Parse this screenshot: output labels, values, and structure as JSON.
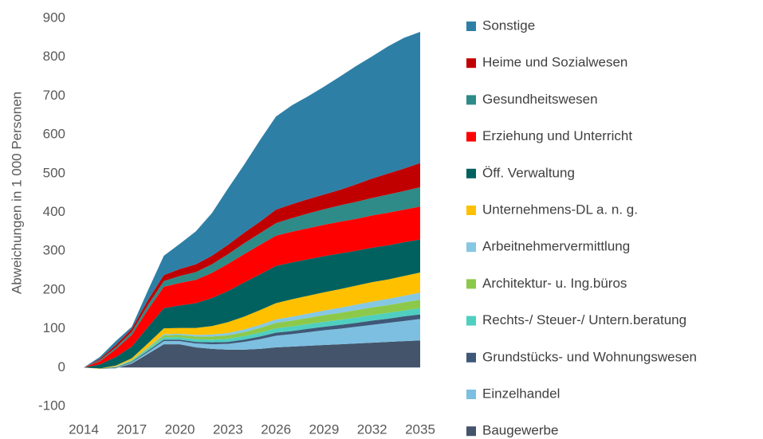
{
  "chart_data": {
    "type": "stacked_area",
    "y_label": "Abweichungen in 1 000 Personen",
    "x": [
      2014,
      2015,
      2016,
      2017,
      2018,
      2019,
      2020,
      2021,
      2022,
      2023,
      2024,
      2025,
      2026,
      2027,
      2028,
      2029,
      2030,
      2031,
      2032,
      2033,
      2034,
      2035
    ],
    "xlim": [
      2014,
      2035
    ],
    "xticks": [
      2014,
      2017,
      2020,
      2023,
      2026,
      2029,
      2032,
      2035
    ],
    "ylim": [
      -100,
      900
    ],
    "yticks": [
      -100,
      0,
      100,
      200,
      300,
      400,
      500,
      600,
      700,
      800,
      900
    ],
    "grid": false,
    "legend": "right",
    "series": [
      {
        "name": "Baugewerbe",
        "color": "#44546a",
        "values": [
          0,
          -3,
          -2,
          10,
          35,
          60,
          60,
          52,
          48,
          46,
          46,
          48,
          52,
          54,
          56,
          58,
          60,
          62,
          64,
          66,
          68,
          70
        ]
      },
      {
        "name": "Einzelhandel",
        "color": "#7dbfe0",
        "values": [
          0,
          0,
          1,
          3,
          5,
          8,
          8,
          10,
          12,
          15,
          20,
          25,
          30,
          32,
          35,
          38,
          40,
          43,
          46,
          49,
          52,
          55
        ]
      },
      {
        "name": "Grundstücks- und Wohnungswesen",
        "color": "#3f5878",
        "values": [
          0,
          0,
          1,
          2,
          3,
          4,
          4,
          4,
          5,
          5,
          6,
          7,
          8,
          8,
          9,
          9,
          10,
          10,
          11,
          11,
          12,
          12
        ]
      },
      {
        "name": "Rechts-/ Steuer-/ Untern.beratung",
        "color": "#4fcfc0",
        "values": [
          0,
          0,
          1,
          2,
          4,
          6,
          6,
          7,
          7,
          8,
          9,
          10,
          11,
          12,
          12,
          13,
          13,
          14,
          14,
          15,
          15,
          16
        ]
      },
      {
        "name": "Architektur- u. Ing.büros",
        "color": "#8cc94a",
        "values": [
          0,
          0,
          1,
          2,
          3,
          5,
          6,
          7,
          8,
          9,
          10,
          12,
          14,
          15,
          16,
          17,
          18,
          19,
          20,
          20,
          21,
          22
        ]
      },
      {
        "name": "Arbeitnehmervermittlung",
        "color": "#86c7e3",
        "values": [
          0,
          0,
          1,
          1,
          2,
          3,
          3,
          4,
          5,
          6,
          7,
          8,
          9,
          10,
          11,
          12,
          13,
          14,
          15,
          16,
          17,
          18
        ]
      },
      {
        "name": "Unternehmens-DL a. n. g.",
        "color": "#ffc000",
        "values": [
          0,
          1,
          2,
          4,
          10,
          15,
          15,
          18,
          22,
          28,
          33,
          38,
          42,
          45,
          46,
          47,
          48,
          49,
          50,
          50,
          51,
          52
        ]
      },
      {
        "name": "Öff. Verwaltung",
        "color": "#00615f",
        "values": [
          0,
          10,
          22,
          30,
          42,
          52,
          58,
          64,
          72,
          80,
          88,
          92,
          96,
          95,
          94,
          93,
          92,
          90,
          89,
          88,
          87,
          85
        ]
      },
      {
        "name": "Erziehung und Unterricht",
        "color": "#ff0000",
        "values": [
          0,
          8,
          20,
          30,
          45,
          55,
          58,
          60,
          65,
          70,
          73,
          76,
          78,
          79,
          80,
          81,
          82,
          82,
          83,
          84,
          84,
          85
        ]
      },
      {
        "name": "Gesundheitswesen",
        "color": "#2e8b87",
        "values": [
          0,
          3,
          5,
          8,
          12,
          15,
          18,
          20,
          22,
          25,
          28,
          30,
          32,
          35,
          38,
          40,
          42,
          44,
          45,
          47,
          48,
          50
        ]
      },
      {
        "name": "Heime und Sozialwesen",
        "color": "#c00000",
        "values": [
          0,
          3,
          6,
          8,
          12,
          15,
          18,
          20,
          22,
          24,
          27,
          30,
          35,
          36,
          37,
          38,
          40,
          45,
          50,
          54,
          58,
          62
        ]
      },
      {
        "name": "Sonstige",
        "color": "#2e7fa6",
        "values": [
          0,
          5,
          10,
          5,
          25,
          50,
          65,
          85,
          110,
          145,
          175,
          210,
          240,
          255,
          265,
          278,
          292,
          305,
          315,
          328,
          337,
          338
        ]
      }
    ]
  }
}
